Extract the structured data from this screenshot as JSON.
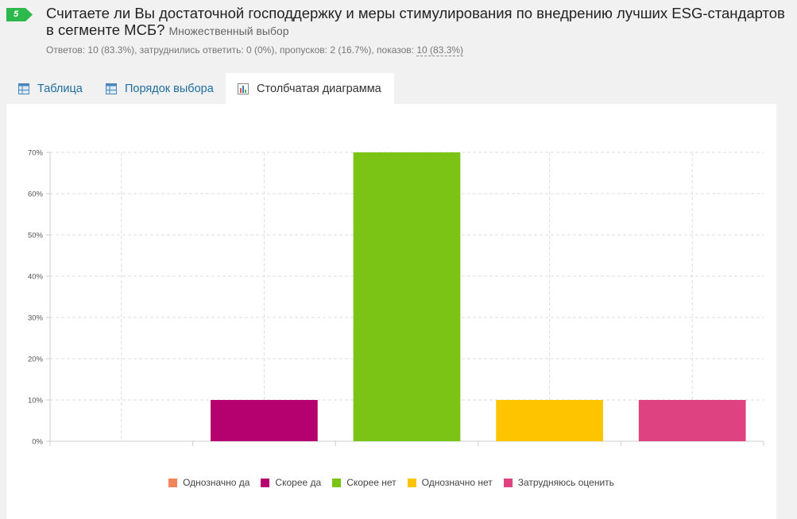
{
  "question": {
    "number": "5",
    "number_color": "#2db84b",
    "title": "Считаете ли Вы достаточной господдержку и меры стимулирования по внедрению лучших ESG-стандартов в сегменте МСБ?",
    "type_label": "Множественный выбор",
    "stats_prefix": "Ответов: 10 (83.3%), затруднились ответить: 0 (0%), пропусков: 2 (16.7%), показов: ",
    "stats_views": "10 (83.3%)"
  },
  "tabs": [
    {
      "label": "Таблица",
      "icon": "table-icon",
      "active": false
    },
    {
      "label": "Порядок выбора",
      "icon": "table-icon",
      "active": false
    },
    {
      "label": "Столбчатая диаграмма",
      "icon": "bar-chart-icon",
      "active": true
    }
  ],
  "chart_data": {
    "type": "bar",
    "categories": [
      "Однозначно да",
      "Скорее да",
      "Скорее нет",
      "Однозначно нет",
      "Затрудняюсь оценить"
    ],
    "values": [
      0,
      10,
      70,
      10,
      10
    ],
    "colors": [
      "#f0875c",
      "#b5006f",
      "#7bc314",
      "#fec400",
      "#de4280"
    ],
    "unit": "%",
    "ylim": [
      0,
      70
    ],
    "yticks": [
      "0%",
      "10%",
      "20%",
      "30%",
      "40%",
      "50%",
      "60%",
      "70%"
    ],
    "grid": true,
    "legend_position": "bottom"
  }
}
